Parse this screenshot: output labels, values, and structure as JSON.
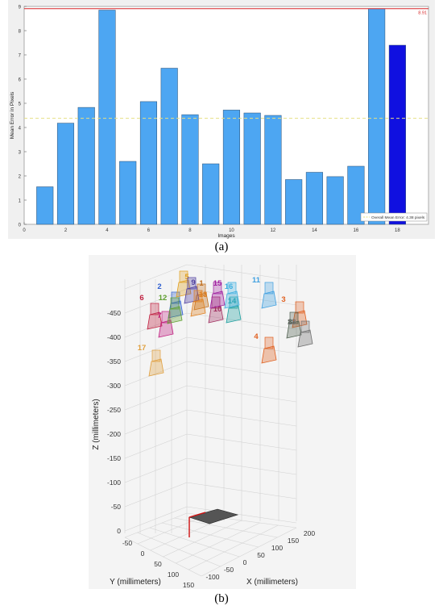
{
  "captions": {
    "a": "(a)",
    "b": "(b)"
  },
  "chart_data": [
    {
      "type": "bar",
      "xlabel": "Images",
      "ylabel": "Mean Error in Pixels",
      "x": [
        1,
        2,
        3,
        4,
        5,
        6,
        7,
        8,
        9,
        10,
        11,
        12,
        13,
        14,
        15,
        16,
        17,
        18
      ],
      "values": [
        1.55,
        4.18,
        4.83,
        8.85,
        2.6,
        5.07,
        6.45,
        4.53,
        2.5,
        4.72,
        4.6,
        4.5,
        1.85,
        2.15,
        1.97,
        2.4,
        8.91,
        7.4
      ],
      "highlight_index": 17,
      "xlim": [
        0,
        19.5
      ],
      "ylim": [
        0,
        9
      ],
      "xticks": [
        0,
        2,
        4,
        6,
        8,
        10,
        12,
        14,
        16,
        18
      ],
      "yticks": [
        0,
        1,
        2,
        3,
        4,
        5,
        6,
        7,
        8,
        9
      ],
      "max_line": {
        "value": 8.91,
        "label": "8.91"
      },
      "mean_line": {
        "value": 4.38,
        "label": "Overall Mean Error: 4.38 pixels"
      },
      "colors": {
        "bar": "#4da6f2",
        "highlight": "#1010e0",
        "max_line": "#d62728",
        "mean_line": "#e6e082",
        "bg": "#f0f0f0"
      },
      "grid": false,
      "legend_position": "bottom-right"
    },
    {
      "type": "scatter3d",
      "xlabel": "X (millimeters)",
      "ylabel": "Y (millimeters)",
      "zlabel": "Z (millimeters)",
      "xticks": [
        -100,
        -50,
        0,
        50,
        100,
        150,
        200
      ],
      "yticks": [
        -50,
        0,
        50,
        100,
        150
      ],
      "zticks": [
        0,
        -50,
        -100,
        -150,
        -200,
        -250,
        -300,
        -350,
        -400,
        -450
      ],
      "camera_labels": [
        {
          "label": "1",
          "color": "#c07020"
        },
        {
          "label": "2",
          "color": "#3060d0"
        },
        {
          "label": "3",
          "color": "#e06020"
        },
        {
          "label": "4",
          "color": "#e06020"
        },
        {
          "label": "5",
          "color": "#e0a020"
        },
        {
          "label": "6",
          "color": "#c02040"
        },
        {
          "label": "7",
          "color": "#c02080"
        },
        {
          "label": "8",
          "color": "#506050"
        },
        {
          "label": "9",
          "color": "#5040a0"
        },
        {
          "label": "10",
          "color": "#a03060"
        },
        {
          "label": "11",
          "color": "#40a0e0"
        },
        {
          "label": "12",
          "color": "#60a030"
        },
        {
          "label": "13",
          "color": "#e08020"
        },
        {
          "label": "14",
          "color": "#20a0a0"
        },
        {
          "label": "15",
          "color": "#a020a0"
        },
        {
          "label": "16",
          "color": "#40b0e0"
        },
        {
          "label": "17",
          "color": "#e0a040"
        },
        {
          "label": "18",
          "color": "#707070"
        }
      ],
      "grid": true
    }
  ]
}
